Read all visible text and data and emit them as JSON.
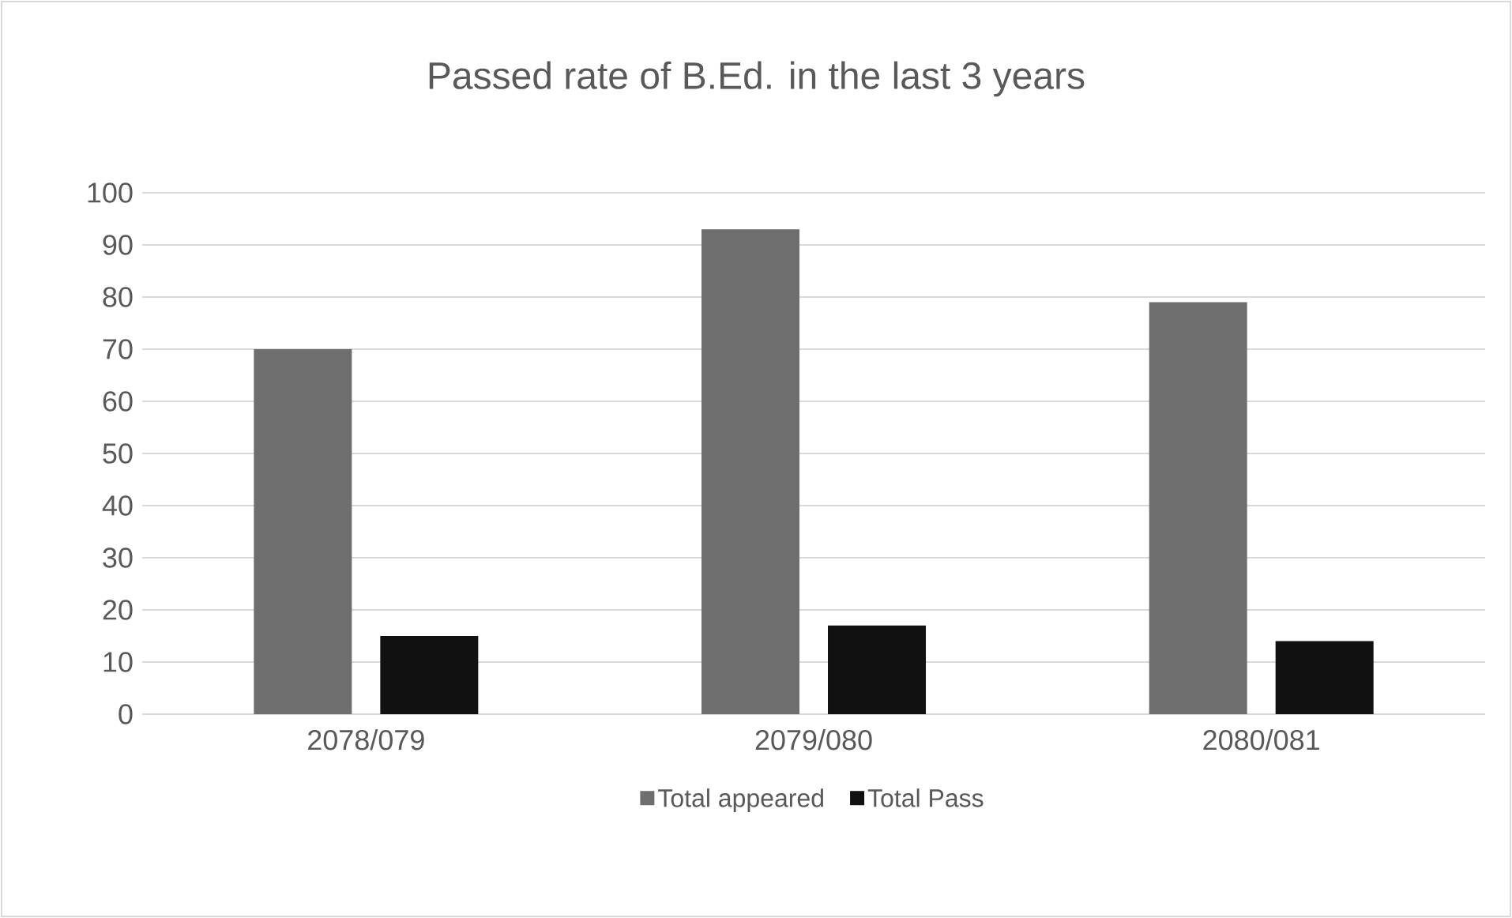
{
  "chart_data": {
    "type": "bar",
    "title": "Passed rate of B.Ed. in the last 3 years",
    "categories": [
      "2078/079",
      "2079/080",
      "2080/081"
    ],
    "series": [
      {
        "name": "Total appeared",
        "color": "#6e6e6e",
        "values": [
          70,
          93,
          79
        ]
      },
      {
        "name": "Total Pass",
        "color": "#111111",
        "values": [
          15,
          17,
          14
        ]
      }
    ],
    "ylim": [
      0,
      100
    ],
    "yticks": [
      0,
      10,
      20,
      30,
      40,
      50,
      60,
      70,
      80,
      90,
      100
    ],
    "grid": "y",
    "legend": "bottom"
  }
}
